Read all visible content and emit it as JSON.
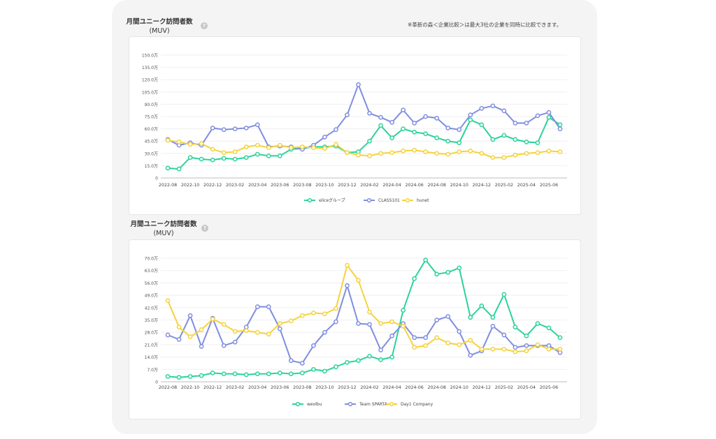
{
  "note": "※革新の森＜企業比較＞は最大3社の企業を同時に比較できます。",
  "help_glyph": "?",
  "charts": [
    {
      "title_line1": "月間ユニーク訪問者数",
      "title_line2": "(MUV)"
    },
    {
      "title_line1": "月間ユニーク訪問者数",
      "title_line2": "(MUV)"
    }
  ],
  "chart_data": [
    {
      "type": "line",
      "title": "月間ユニーク訪問者数 (MUV)",
      "ylim": [
        0,
        150
      ],
      "y_ticks": [
        0,
        15,
        30,
        45,
        60,
        75,
        90,
        105,
        120,
        135,
        150
      ],
      "y_tick_labels": [
        "0",
        "15.0万",
        "30.0万",
        "45.0万",
        "60.0万",
        "75.0万",
        "90.0万",
        "105.0万",
        "120.0万",
        "135.0万",
        "150.0万"
      ],
      "x": [
        "2022-08",
        "2022-09",
        "2022-10",
        "2022-11",
        "2022-12",
        "2023-01",
        "2023-02",
        "2023-03",
        "2023-04",
        "2023-05",
        "2023-06",
        "2023-07",
        "2023-08",
        "2023-09",
        "2023-10",
        "2023-11",
        "2023-12",
        "2024-01",
        "2024-02",
        "2024-03",
        "2024-04",
        "2024-05",
        "2024-06",
        "2024-07",
        "2024-08",
        "2024-09",
        "2024-10",
        "2024-11",
        "2024-12",
        "2025-01",
        "2025-02",
        "2025-03",
        "2025-04",
        "2025-05",
        "2025-06",
        "2025-07"
      ],
      "x_tick_labels": [
        "2022-08",
        "2022-10",
        "2022-12",
        "2023-02",
        "2023-04",
        "2023-06",
        "2023-08",
        "2023-10",
        "2023-12",
        "2024-02",
        "2024-04",
        "2024-06",
        "2024-08",
        "2024-10",
        "2024-12",
        "2025-02",
        "2025-04",
        "2025-06"
      ],
      "legend_position": "bottom",
      "grid": true,
      "series": [
        {
          "name": "eliceグループ",
          "color": "#2bd39a",
          "values": [
            12,
            11,
            25,
            23,
            22,
            24,
            23,
            25,
            29,
            27,
            27,
            35,
            36,
            38,
            38,
            39,
            31,
            32,
            45,
            64,
            49,
            60,
            56,
            54,
            49,
            45,
            43,
            71,
            65,
            47,
            52,
            47,
            44,
            43,
            74,
            65
          ]
        },
        {
          "name": "CLASS101",
          "color": "#7f8ee0",
          "values": [
            47,
            40,
            43,
            40,
            61,
            59,
            60,
            61,
            65,
            38,
            39,
            38,
            35,
            40,
            50,
            59,
            77,
            114,
            79,
            74,
            68,
            83,
            67,
            75,
            73,
            61,
            59,
            77,
            85,
            88,
            82,
            67,
            67,
            76,
            80,
            60
          ]
        },
        {
          "name": "hunet",
          "color": "#f5d33c",
          "values": [
            46,
            44,
            41,
            42,
            35,
            31,
            32,
            38,
            40,
            37,
            40,
            37,
            38,
            37,
            36,
            41,
            31,
            28,
            27,
            30,
            31,
            33,
            34,
            32,
            30,
            29,
            32,
            33,
            30,
            25,
            25,
            28,
            30,
            31,
            33,
            32
          ]
        }
      ]
    },
    {
      "type": "line",
      "title": "月間ユニーク訪問者数 (MUV)",
      "ylim": [
        0,
        70
      ],
      "y_ticks": [
        0,
        7,
        14,
        21,
        28,
        35,
        42,
        49,
        56,
        63,
        70
      ],
      "y_tick_labels": [
        "0",
        "7.0万",
        "14.0万",
        "21.0万",
        "28.0万",
        "35.0万",
        "42.0万",
        "49.0万",
        "56.0万",
        "63.0万",
        "70.0万"
      ],
      "x": [
        "2022-08",
        "2022-09",
        "2022-10",
        "2022-11",
        "2022-12",
        "2023-01",
        "2023-02",
        "2023-03",
        "2023-04",
        "2023-05",
        "2023-06",
        "2023-07",
        "2023-08",
        "2023-09",
        "2023-10",
        "2023-11",
        "2023-12",
        "2024-01",
        "2024-02",
        "2024-03",
        "2024-04",
        "2024-05",
        "2024-06",
        "2024-07",
        "2024-08",
        "2024-09",
        "2024-10",
        "2024-11",
        "2024-12",
        "2025-01",
        "2025-02",
        "2025-03",
        "2025-04",
        "2025-05",
        "2025-06",
        "2025-07"
      ],
      "x_tick_labels": [
        "2022-08",
        "2022-10",
        "2022-12",
        "2023-02",
        "2023-04",
        "2023-06",
        "2023-08",
        "2023-10",
        "2023-12",
        "2024-02",
        "2024-04",
        "2024-06",
        "2024-08",
        "2024-10",
        "2024-12",
        "2025-02",
        "2025-04",
        "2025-06"
      ],
      "legend_position": "bottom",
      "grid": true,
      "series": [
        {
          "name": "weolbu",
          "color": "#2bd39a",
          "values": [
            3,
            2.5,
            3,
            3.5,
            5,
            4.5,
            4.5,
            4,
            4.5,
            4.5,
            5,
            4.5,
            5,
            7,
            6,
            8.5,
            11,
            12,
            14.5,
            12.5,
            14,
            40.5,
            58.5,
            69,
            61,
            62,
            64.5,
            36.5,
            43,
            36.5,
            49.5,
            31,
            26,
            33,
            30.5,
            25
          ]
        },
        {
          "name": "Team SPARTA",
          "color": "#7f8ee0",
          "values": [
            26.5,
            24,
            37.5,
            20,
            36,
            20.5,
            22.5,
            31,
            42.5,
            42.5,
            30,
            12,
            10.5,
            20.5,
            28,
            34,
            54.5,
            33,
            32.5,
            18,
            26,
            33,
            25,
            25,
            35,
            37,
            28.5,
            15,
            17.5,
            31.5,
            26.5,
            19.5,
            20.5,
            20.5,
            20.5,
            16.5
          ]
        },
        {
          "name": "Day1 Company",
          "color": "#f5d33c",
          "values": [
            46,
            31,
            25.5,
            29.5,
            35.5,
            32.5,
            28.5,
            29,
            28,
            27,
            33,
            34.5,
            37.5,
            39,
            38.5,
            41.5,
            66,
            57.5,
            39.5,
            33,
            34,
            31.5,
            19.5,
            20.5,
            25,
            22,
            21,
            23.5,
            18.5,
            18.5,
            18.5,
            17,
            17.5,
            21,
            18.5,
            18.5
          ]
        }
      ]
    }
  ]
}
